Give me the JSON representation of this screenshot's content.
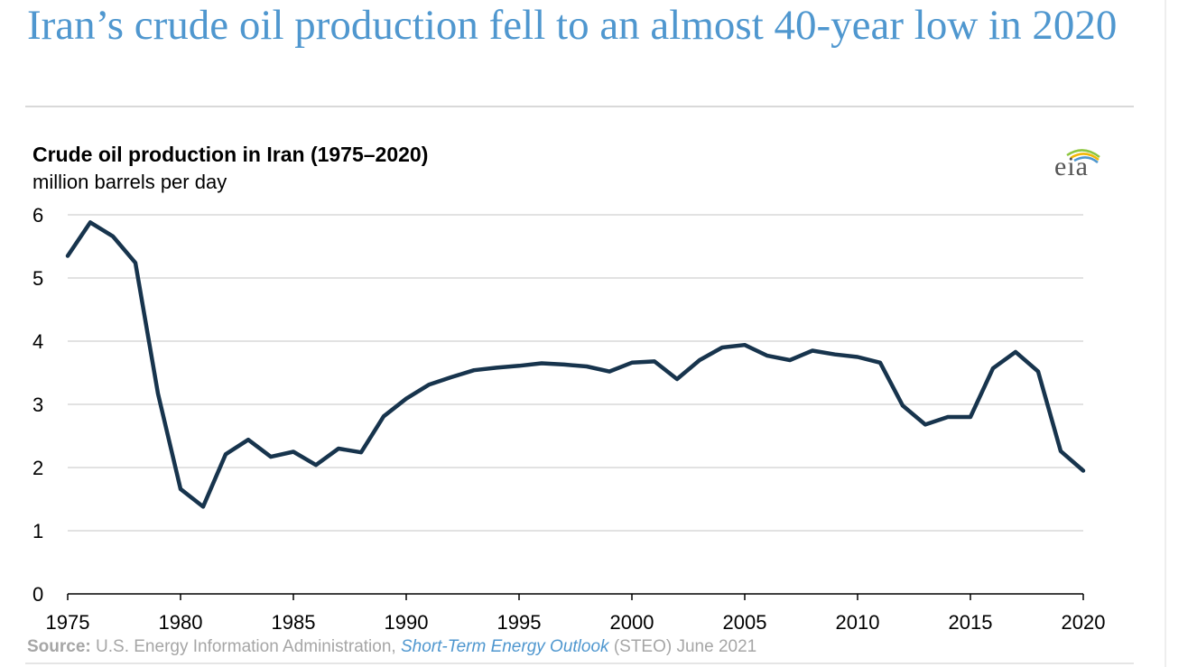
{
  "headline": "Iran’s crude oil production fell to an almost 40-year low in 2020",
  "logo": {
    "text": "eia",
    "icon": "eia-logo-icon",
    "arc_colors": [
      "#8dc63f",
      "#f2b705",
      "#4f97cf"
    ]
  },
  "source": {
    "label": "Source:",
    "org": "U.S. Energy Information Administration,",
    "link": "Short-Term Energy Outlook",
    "rest": "(STEO) June 2021"
  },
  "chart_data": {
    "type": "line",
    "title": "Crude oil production in Iran (1975–2020)",
    "ylabel": "million barrels per day",
    "xlabel": "",
    "ylim": [
      0,
      6
    ],
    "xlim": [
      1975,
      2020
    ],
    "yticks": [
      "0",
      "1",
      "2",
      "3",
      "4",
      "5",
      "6"
    ],
    "xticks": [
      "1975",
      "1980",
      "1985",
      "1990",
      "1995",
      "2000",
      "2005",
      "2010",
      "2015",
      "2020"
    ],
    "grid": true,
    "line_color": "#17344d",
    "series": [
      {
        "name": "Crude oil production",
        "x": [
          1975,
          1976,
          1977,
          1978,
          1979,
          1980,
          1981,
          1982,
          1983,
          1984,
          1985,
          1986,
          1987,
          1988,
          1989,
          1990,
          1991,
          1992,
          1993,
          1994,
          1995,
          1996,
          1997,
          1998,
          1999,
          2000,
          2001,
          2002,
          2003,
          2004,
          2005,
          2006,
          2007,
          2008,
          2009,
          2010,
          2011,
          2012,
          2013,
          2014,
          2015,
          2016,
          2017,
          2018,
          2019,
          2020
        ],
        "values": [
          5.35,
          5.88,
          5.66,
          5.24,
          3.17,
          1.66,
          1.38,
          2.21,
          2.44,
          2.17,
          2.25,
          2.04,
          2.3,
          2.24,
          2.81,
          3.09,
          3.31,
          3.43,
          3.54,
          3.58,
          3.61,
          3.65,
          3.63,
          3.6,
          3.52,
          3.66,
          3.68,
          3.4,
          3.7,
          3.9,
          3.94,
          3.77,
          3.7,
          3.85,
          3.79,
          3.75,
          3.66,
          2.98,
          2.68,
          2.8,
          2.8,
          3.57,
          3.83,
          3.52,
          2.26,
          1.95
        ]
      }
    ]
  }
}
